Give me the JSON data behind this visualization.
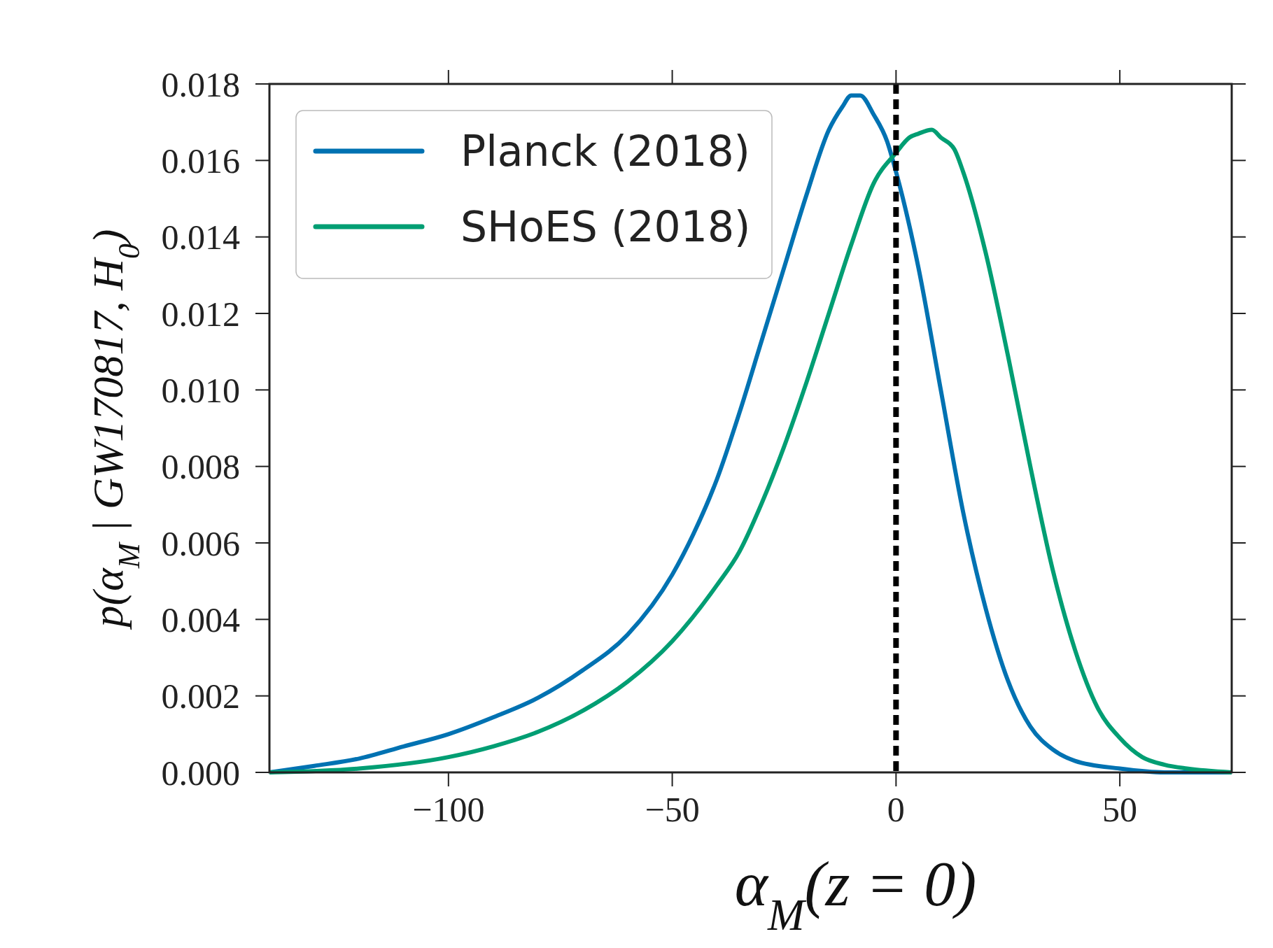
{
  "chart_data": {
    "type": "line",
    "xlabel": "α$_{M}$(z = 0)",
    "ylabel": "p(α$_{M}$ | GW170817, H$_{0}$)",
    "xlim": [
      -140,
      75
    ],
    "ylim": [
      0,
      0.018
    ],
    "xticks": [
      {
        "value": -100,
        "label": "−100"
      },
      {
        "value": -50,
        "label": "−50"
      },
      0,
      50
    ],
    "yticks": [
      {
        "value": 0,
        "label": "0.000"
      },
      {
        "value": 0.002,
        "label": "0.002"
      },
      {
        "value": 0.004,
        "label": "0.004"
      },
      {
        "value": 0.006,
        "label": "0.006"
      },
      {
        "value": 0.008,
        "label": "0.008"
      },
      {
        "value": 0.01,
        "label": "0.010"
      },
      {
        "value": 0.012,
        "label": "0.012"
      },
      {
        "value": 0.014,
        "label": "0.014"
      },
      {
        "value": 0.016,
        "label": "0.016"
      },
      {
        "value": 0.018,
        "label": "0.018"
      }
    ],
    "legend": "top left",
    "grid": false,
    "line_style": "solid",
    "ref_lines": [
      {
        "axis": "x",
        "value": 0,
        "color": "#000000",
        "line_style": "dashed"
      }
    ],
    "series": [
      {
        "name": "Planck (2018)",
        "color": "#0072b2",
        "x": [
          -140,
          -130,
          -120,
          -110,
          -100,
          -90,
          -80,
          -70,
          -60,
          -50,
          -45,
          -40,
          -35,
          -30,
          -25,
          -20,
          -15,
          -12,
          -10,
          -8,
          -5,
          -2,
          0,
          5,
          10,
          15,
          20,
          25,
          30,
          35,
          40,
          50,
          60,
          75
        ],
        "values": [
          0,
          0.00017,
          0.00036,
          0.00068,
          0.001,
          0.00144,
          0.00195,
          0.00267,
          0.0036,
          0.00517,
          0.0063,
          0.00767,
          0.0094,
          0.0113,
          0.0132,
          0.0151,
          0.0168,
          0.0174,
          0.0177,
          0.0177,
          0.0172,
          0.0165,
          0.0157,
          0.0132,
          0.01,
          0.0068,
          0.0043,
          0.0024,
          0.0012,
          0.0006,
          0.0003,
          0.0001,
          0,
          0
        ]
      },
      {
        "name": "SHoES (2018)",
        "color": "#009e73",
        "x": [
          -140,
          -120,
          -100,
          -90,
          -80,
          -70,
          -60,
          -50,
          -40,
          -35,
          -30,
          -25,
          -20,
          -15,
          -10,
          -5,
          0,
          3,
          5,
          8,
          10,
          13,
          15,
          20,
          25,
          30,
          35,
          40,
          45,
          50,
          55,
          60,
          65,
          75
        ],
        "values": [
          0,
          0.0001,
          0.0004,
          0.00068,
          0.00106,
          0.00161,
          0.00237,
          0.00343,
          0.0049,
          0.00577,
          0.00704,
          0.00852,
          0.0102,
          0.012,
          0.0138,
          0.0154,
          0.0162,
          0.0166,
          0.0167,
          0.0168,
          0.0166,
          0.0163,
          0.0157,
          0.0136,
          0.0109,
          0.008,
          0.0053,
          0.0032,
          0.0017,
          0.0009,
          0.0004,
          0.0002,
          0.0001,
          0
        ]
      }
    ]
  }
}
